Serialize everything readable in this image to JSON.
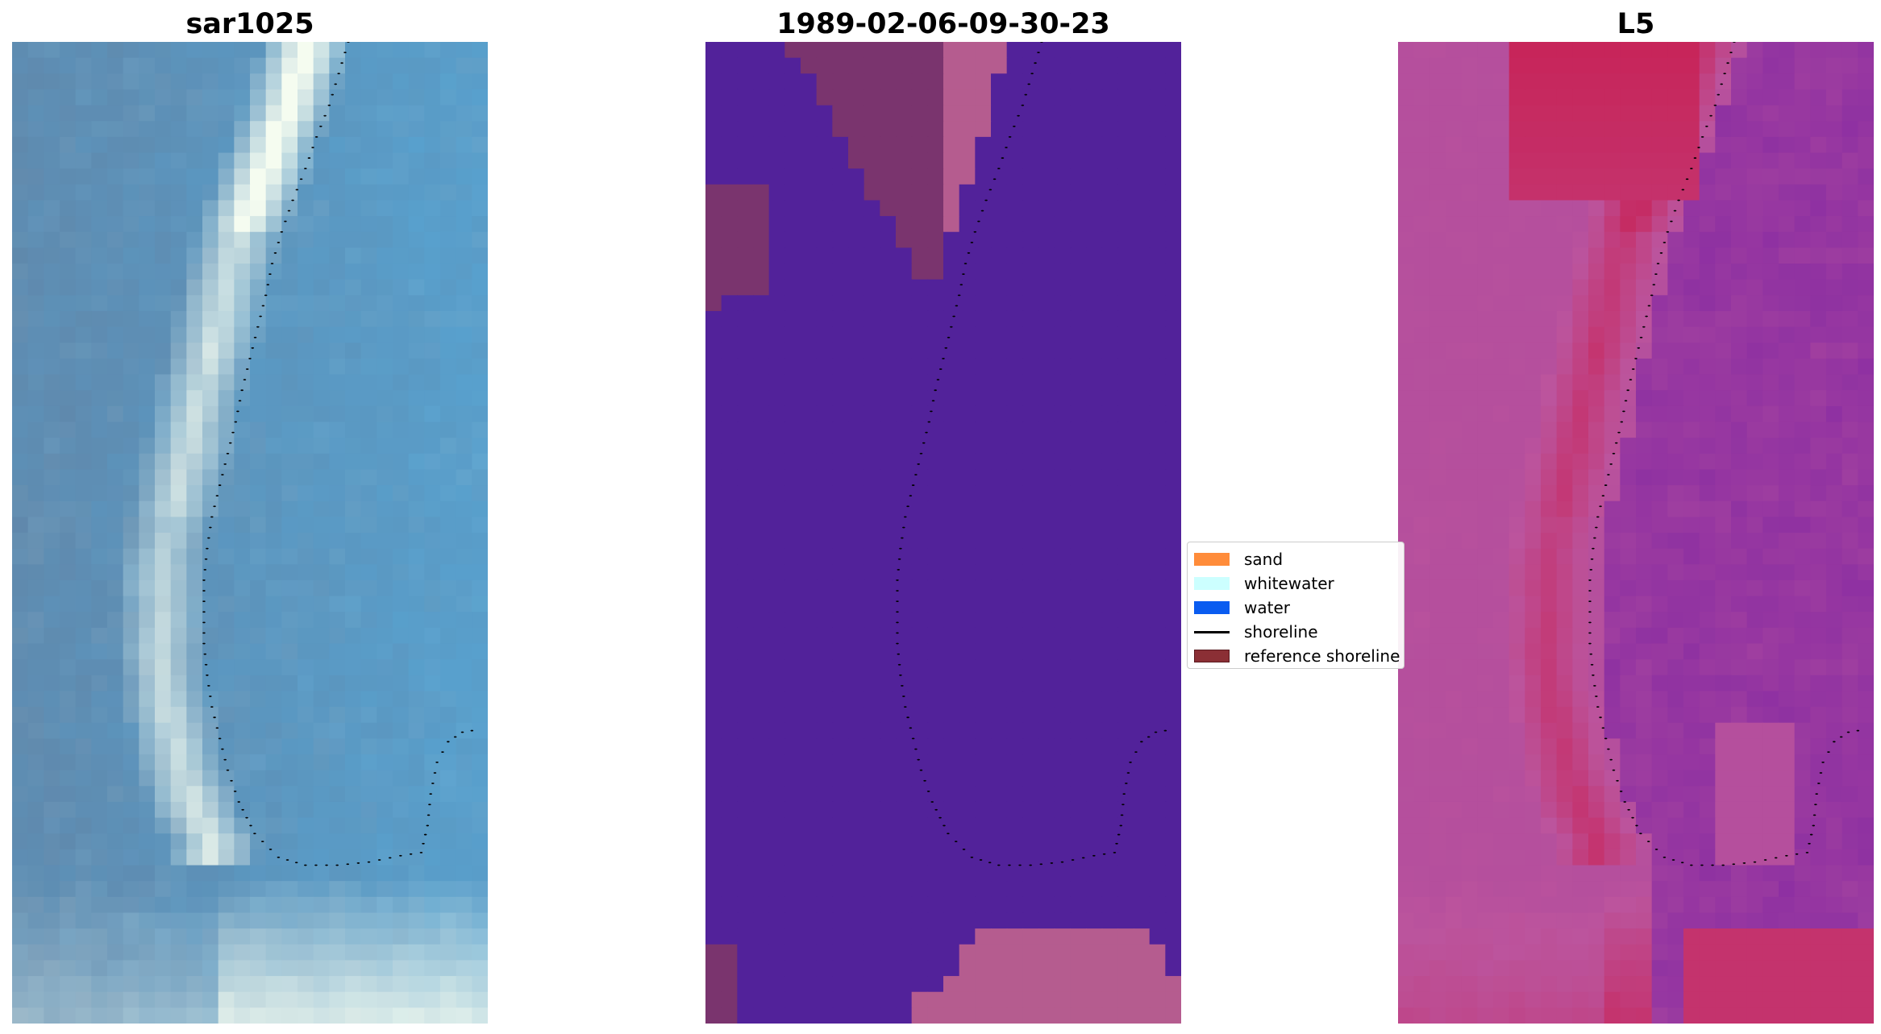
{
  "panels": [
    {
      "id": "left",
      "title": "sar1025",
      "colormap": "blue"
    },
    {
      "id": "mid",
      "title": "1989-02-06-09-30-23",
      "colormap": "classified"
    },
    {
      "id": "right",
      "title": "L5",
      "colormap": "plasma"
    }
  ],
  "legend": {
    "items": [
      {
        "label": "sand",
        "type": "patch",
        "color": "#ff8c3a"
      },
      {
        "label": "whitewater",
        "type": "patch",
        "color": "#ccffff"
      },
      {
        "label": "water",
        "type": "patch",
        "color": "#0a5cf0"
      },
      {
        "label": "shoreline",
        "type": "line",
        "color": "#000000"
      },
      {
        "label": "reference shoreline",
        "type": "patch",
        "color": "#8b2f35"
      }
    ]
  },
  "colors": {
    "shoreline_dots": "#000000",
    "classified_background": "#52229a",
    "classified_patch_dark": "#7a346e",
    "classified_patch_light": "#b55c8f",
    "background": "#ffffff"
  }
}
